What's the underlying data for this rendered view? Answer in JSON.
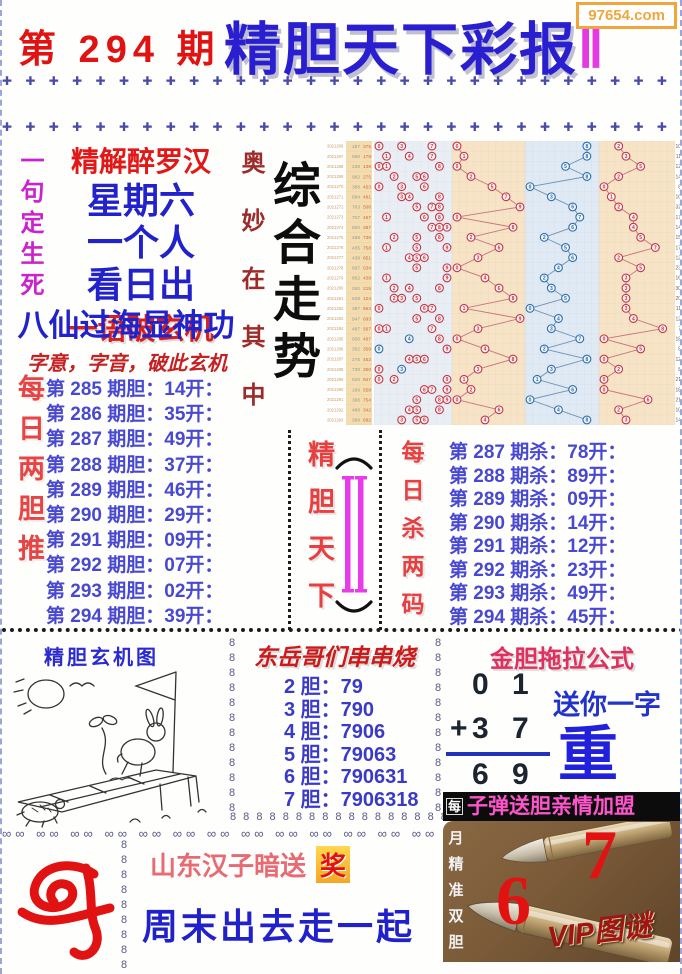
{
  "header": {
    "issue": "第 294 期",
    "title": "精胆天下彩报",
    "title_suffix": "Ⅱ",
    "site": "97654.com"
  },
  "decor": {
    "plus_row": "✚ ✚ ✚ ✚ ✚ ✚ ✚ ✚ ✚ ✚ ✚ ✚ ✚ ✚ ✚ ✚ ✚ ✚ ✚ ✚ ✚ ✚ ✚ ✚ ✚ ✚ ✚ ✚ ✚ ✚ ✚ ✚ ✚ ✚ ✚ ✚ ✚ ✚ ✚ ✚ ✚ ✚ ✚ ✚",
    "eight_chain": "8\n8\n8\n8\n8\n8\n8\n8\n8\n8\n8\n8\n8",
    "eight_row": "8 8 8 8 8 8 8 8 8 8 8 8 8 8 8 8 8 8 8 8 8 8 8 8",
    "infinity_row": "∞∞ ∞∞ ∞∞ ∞∞ ∞∞ ∞∞ ∞∞ ∞∞ ∞∞ ∞∞ ∞∞ ∞∞ ∞∞ ∞∞ ∞∞ ∞∞ ∞∞"
  },
  "left_panel": {
    "vertical_left": "一句定生死",
    "vertical_right": "奥妙在其中",
    "riddle_title": "精解醉罗汉",
    "riddle_lines": [
      "星期六",
      "一个人",
      "看日出"
    ],
    "riddle_footer": "一语破玄机",
    "slogan": "八仙过海显神功",
    "hint": "字意，字音，破此玄机",
    "dan_header_vertical": "每日两胆推"
  },
  "dan": {
    "rows": [
      "第 285 期胆：14开：",
      "第 286 期胆：35开：",
      "第 287 期胆：49开：",
      "第 288 期胆：37开：",
      "第 289 期胆：46开：",
      "第 290 期胆：29开：",
      "第 291 期胆：09开：",
      "第 292 期胆：07开：",
      "第 293 期胆：02开：",
      "第 294 期胆：39开："
    ]
  },
  "center": {
    "trend_title": "综合走势"
  },
  "middle": {
    "brand_vertical": "精胆天下",
    "kill_header_vertical": "每日杀两码"
  },
  "kill": {
    "rows": [
      "第 287 期杀：78开：",
      "第 288 期杀：89开：",
      "第 289 期杀：09开：",
      "第 290 期杀：14开：",
      "第 291 期杀：12开：",
      "第 292 期杀：23开：",
      "第 293 期杀：49开：",
      "第 294 期杀：45开："
    ]
  },
  "chart_data": {
    "type": "heatmap",
    "description": "Lottery number trend grid: per-period red marker digits in zone A, red zigzag line (zone B), blue zigzag line (zone C), red zigzag line (zone D); values estimated from pixels, columns are digits 0-9",
    "periods": [
      "2021266",
      "2021267",
      "2021268",
      "2021269",
      "2021270",
      "2021271",
      "2021272",
      "2021273",
      "2021274",
      "2021275",
      "2021276",
      "2021277",
      "2021278",
      "2021279",
      "2021280",
      "2021281",
      "2021282",
      "2021283",
      "2021284",
      "2021285",
      "2021286",
      "2021287",
      "2021288",
      "2021289",
      "2021290",
      "2021291",
      "2021292",
      "2021293"
    ],
    "aux1": [
      "187",
      "560",
      "238",
      "982",
      "388",
      "894",
      "763",
      "707",
      "820",
      "488",
      "435",
      "438",
      "897",
      "862",
      "260",
      "638",
      "387",
      "947",
      "487",
      "506",
      "352",
      "275",
      "739",
      "520",
      "189",
      "388",
      "488",
      "369"
    ],
    "aux2": [
      "375",
      "178",
      "138",
      "275",
      "453",
      "481",
      "508",
      "467",
      "387",
      "736",
      "758",
      "851",
      "534",
      "438",
      "215",
      "124",
      "563",
      "693",
      "567",
      "467",
      "358",
      "452",
      "350",
      "847",
      "558",
      "754",
      "342",
      "682"
    ],
    "zoneA_red_dots": [
      [
        0,
        3,
        7
      ],
      [
        1,
        4,
        7
      ],
      [
        0,
        1,
        8
      ],
      [
        2,
        5,
        6
      ],
      [
        0,
        3,
        6
      ],
      [
        3,
        4,
        8
      ],
      [
        5,
        7,
        8
      ],
      [
        1,
        6,
        8
      ],
      [
        7,
        8,
        9
      ],
      [
        2,
        5,
        8
      ],
      [
        1,
        5,
        9
      ],
      [
        4,
        5,
        6
      ],
      [
        5,
        9
      ],
      [
        1,
        9
      ],
      [
        2,
        4,
        8
      ],
      [
        2,
        3,
        5
      ],
      [
        0,
        6,
        7
      ],
      [
        5,
        8
      ],
      [
        0,
        1,
        7
      ],
      [
        8
      ],
      [
        9
      ],
      [
        4,
        5,
        6
      ],
      [
        0
      ],
      [
        0,
        2,
        9
      ],
      [
        6,
        7,
        9
      ],
      [
        5,
        8,
        9
      ],
      [
        4,
        5,
        8
      ],
      [
        3,
        5,
        6
      ]
    ],
    "zoneA_blue_dots": [
      [],
      [],
      [],
      [],
      [],
      [],
      [],
      [],
      [],
      [],
      [],
      [],
      [],
      [],
      [],
      [],
      [],
      [],
      [],
      [
        4
      ],
      [
        0
      ],
      [],
      [
        3
      ],
      [],
      [],
      [],
      [],
      []
    ],
    "lineB_red": [
      0,
      1,
      0,
      2,
      5,
      7,
      9,
      0,
      8,
      2,
      6,
      3,
      0,
      4,
      6,
      8,
      1,
      9,
      3,
      0,
      4,
      8,
      3,
      1,
      2,
      0,
      6,
      4
    ],
    "lineC_blue": [
      8,
      8,
      5,
      8,
      0,
      3,
      6,
      7,
      6,
      2,
      5,
      6,
      4,
      2,
      3,
      5,
      0,
      4,
      3,
      7,
      2,
      8,
      3,
      1,
      6,
      0,
      4,
      8
    ],
    "lineD_red": [
      2,
      3,
      5,
      2,
      0,
      1,
      2,
      4,
      4,
      5,
      7,
      2,
      5,
      3,
      3,
      3,
      3,
      4,
      8,
      0,
      5,
      0,
      2,
      0,
      0,
      6,
      2,
      3
    ],
    "right_nums": [
      "10",
      "11",
      "12",
      "14",
      "8",
      "10",
      "32",
      "17",
      "14",
      "15",
      "17",
      "12",
      "23",
      "16",
      "30",
      "20",
      "11",
      "12",
      "7",
      "18",
      "8",
      "12",
      "8",
      "21",
      "18",
      "21",
      "10",
      "14"
    ],
    "axis": {
      "columns_per_zone": 10,
      "column_range": [
        0,
        9
      ]
    },
    "legend": "red = hot digits / kill trail, blue = cold digit trail"
  },
  "bottom": {
    "mystery_title": "精胆玄机图",
    "chuan_title": "东岳哥们串串烧",
    "chuan_rows": [
      "2 胆：79",
      "3 胆：790",
      "4 胆：7906",
      "5 胆：79063",
      "6 胆：790631",
      "7 胆：7906318"
    ],
    "formula": {
      "title": "金胆拖拉公式",
      "r1c1": "0",
      "r1c2": "1",
      "plus": "+",
      "r2c1": "3",
      "r2c2": "7",
      "r3c1": "6",
      "r3c2": "9",
      "gift_label": "送你一字",
      "gift_char": "重"
    },
    "shandong_text": "山东汉子暗送",
    "prize_char": "奖",
    "weekend_text": "周末出去走一起"
  },
  "vip": {
    "banner": "子弹送胆亲情加盟",
    "mei": "每",
    "vertical": "月\n精\n准\n双\n胆",
    "num_top": "7",
    "num_bottom": "6",
    "watermark": "VIP图谜"
  },
  "colors": {
    "title_blue": "#2a1fd0",
    "issue_red": "#e01212",
    "magenta": "#e33ae3",
    "list_blue": "#4848d0",
    "hot_red": "#c03848",
    "cold_blue": "#2e6fa8",
    "zone_peach": "#f7e4c6",
    "zone_blue": "#e0eaf4",
    "banner_pink": "#ff55cc",
    "site_orange": "#f0a63c"
  }
}
